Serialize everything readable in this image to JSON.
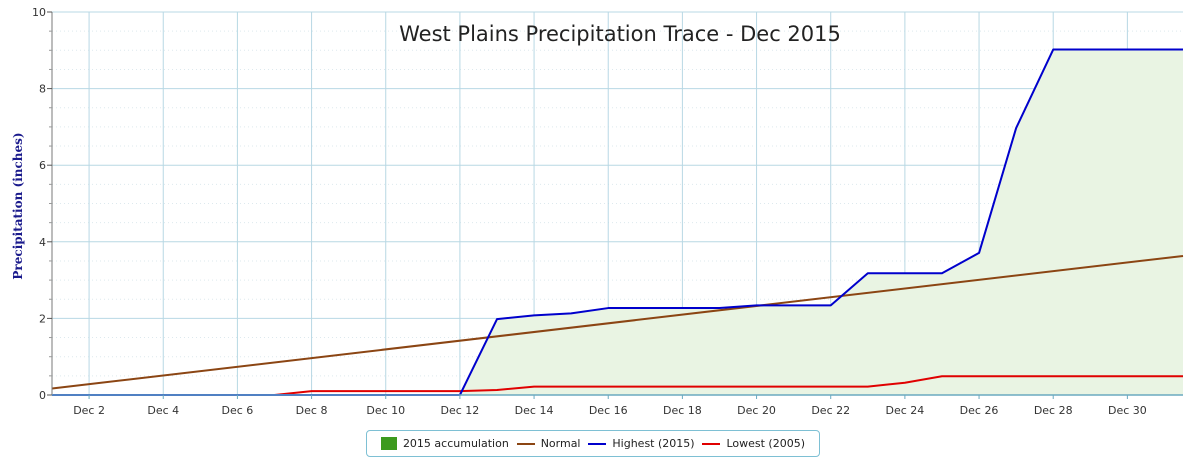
{
  "chart_data": {
    "type": "line",
    "title": "West Plains Precipitation Trace - Dec 2015",
    "ylabel": "Precipitation (inches)",
    "xlabel": "",
    "xlim": [
      1,
      31.5
    ],
    "ylim": [
      0,
      10
    ],
    "y_ticks": [
      0,
      2,
      4,
      6,
      8,
      10
    ],
    "x_ticks": [
      {
        "day": 2,
        "label": "Dec 2"
      },
      {
        "day": 4,
        "label": "Dec 4"
      },
      {
        "day": 6,
        "label": "Dec 6"
      },
      {
        "day": 8,
        "label": "Dec 8"
      },
      {
        "day": 10,
        "label": "Dec 10"
      },
      {
        "day": 12,
        "label": "Dec 12"
      },
      {
        "day": 14,
        "label": "Dec 14"
      },
      {
        "day": 16,
        "label": "Dec 16"
      },
      {
        "day": 18,
        "label": "Dec 18"
      },
      {
        "day": 20,
        "label": "Dec 20"
      },
      {
        "day": 22,
        "label": "Dec 22"
      },
      {
        "day": 24,
        "label": "Dec 24"
      },
      {
        "day": 26,
        "label": "Dec 26"
      },
      {
        "day": 28,
        "label": "Dec 28"
      },
      {
        "day": 30,
        "label": "Dec 30"
      }
    ],
    "grid": true,
    "legend_position": "bottom-center",
    "series": [
      {
        "name": "2015 accumulation",
        "kind": "area",
        "color": "#3c9a1e",
        "fill": "#e9f4e3",
        "x": [
          1,
          2,
          3,
          4,
          5,
          6,
          7,
          8,
          9,
          10,
          11,
          12,
          13,
          14,
          15,
          16,
          17,
          18,
          19,
          20,
          21,
          22,
          23,
          24,
          25,
          26,
          27,
          28,
          29,
          30,
          31,
          31.5
        ],
        "values": [
          0,
          0,
          0,
          0,
          0,
          0,
          0,
          0,
          0,
          0,
          0,
          0,
          1.98,
          2.08,
          2.13,
          2.27,
          2.27,
          2.27,
          2.27,
          2.34,
          2.34,
          2.34,
          3.18,
          3.18,
          3.18,
          3.71,
          6.97,
          9.02,
          9.02,
          9.02,
          9.02,
          9.02
        ]
      },
      {
        "name": "Normal",
        "kind": "line",
        "color": "#8b4513",
        "x": [
          1,
          31.5
        ],
        "values": [
          0.17,
          3.63
        ]
      },
      {
        "name": "Highest (2015)",
        "kind": "line",
        "color": "#0000cc",
        "x": [
          1,
          2,
          3,
          4,
          5,
          6,
          7,
          8,
          9,
          10,
          11,
          12,
          13,
          14,
          15,
          16,
          17,
          18,
          19,
          20,
          21,
          22,
          23,
          24,
          25,
          26,
          27,
          28,
          29,
          30,
          31,
          31.5
        ],
        "values": [
          0,
          0,
          0,
          0,
          0,
          0,
          0,
          0,
          0,
          0,
          0,
          0,
          1.98,
          2.08,
          2.13,
          2.27,
          2.27,
          2.27,
          2.27,
          2.34,
          2.34,
          2.34,
          3.18,
          3.18,
          3.18,
          3.71,
          6.97,
          9.02,
          9.02,
          9.02,
          9.02,
          9.02
        ]
      },
      {
        "name": "Lowest (2005)",
        "kind": "line",
        "color": "#e00000",
        "x": [
          1,
          2,
          3,
          4,
          5,
          6,
          7,
          8,
          9,
          10,
          11,
          12,
          13,
          14,
          15,
          16,
          17,
          18,
          19,
          20,
          21,
          22,
          23,
          24,
          25,
          26,
          27,
          28,
          29,
          30,
          31,
          31.5
        ],
        "values": [
          0,
          0,
          0,
          0,
          0,
          0,
          0,
          0.1,
          0.1,
          0.1,
          0.1,
          0.1,
          0.13,
          0.22,
          0.22,
          0.22,
          0.22,
          0.22,
          0.22,
          0.22,
          0.22,
          0.22,
          0.22,
          0.32,
          0.49,
          0.49,
          0.49,
          0.49,
          0.49,
          0.49,
          0.49,
          0.49
        ]
      }
    ]
  }
}
